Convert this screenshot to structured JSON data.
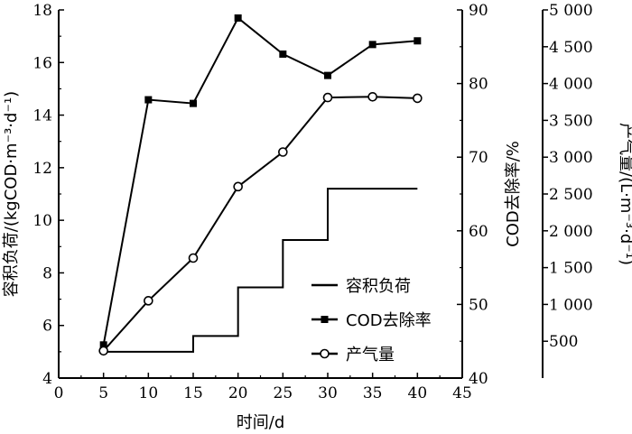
{
  "chart_data": {
    "type": "line",
    "x_axis": {
      "label": "时间/d",
      "range": [
        0,
        45
      ],
      "ticks": [
        0,
        5,
        10,
        15,
        20,
        25,
        30,
        35,
        40,
        45
      ]
    },
    "left_axis": {
      "label": "容积负荷/(kgCOD·m⁻³·d⁻¹)",
      "range": [
        4,
        18
      ],
      "ticks": [
        4,
        6,
        8,
        10,
        12,
        14,
        16,
        18
      ]
    },
    "right_axis_1": {
      "label": "COD去除率/%",
      "range": [
        40,
        90
      ],
      "ticks": [
        40,
        50,
        60,
        70,
        80,
        90
      ]
    },
    "right_axis_2": {
      "label": "产气量/(L·m⁻³·d⁻¹)",
      "range": [
        0,
        5000
      ],
      "ticks": [
        500,
        1000,
        1500,
        2000,
        2500,
        3000,
        3500,
        4000,
        4500,
        5000
      ],
      "tick_labels": [
        "500",
        "1 000",
        "1 500",
        "2 000",
        "2 500",
        "3 000",
        "3 500",
        "4 000",
        "4 500",
        "5 000"
      ]
    },
    "series": [
      {
        "name": "容积负荷",
        "axis": "left",
        "style": "step",
        "marker": "none",
        "points": [
          [
            5,
            5.0
          ],
          [
            15,
            5.0
          ],
          [
            15,
            5.6
          ],
          [
            20,
            5.6
          ],
          [
            20,
            7.45
          ],
          [
            25,
            7.45
          ],
          [
            25,
            9.25
          ],
          [
            30,
            9.25
          ],
          [
            30,
            11.2
          ],
          [
            40,
            11.2
          ]
        ]
      },
      {
        "name": "COD去除率",
        "axis": "right_1",
        "marker": "square",
        "points": [
          [
            5,
            44.5
          ],
          [
            10,
            77.8
          ],
          [
            15,
            77.3
          ],
          [
            20,
            88.9
          ],
          [
            25,
            84.0
          ],
          [
            30,
            81.1
          ],
          [
            35,
            85.3
          ],
          [
            40,
            85.8
          ]
        ]
      },
      {
        "name": "产气量",
        "axis": "right_2",
        "marker": "circle-open",
        "points": [
          [
            5,
            370
          ],
          [
            10,
            1050
          ],
          [
            15,
            1630
          ],
          [
            20,
            2600
          ],
          [
            25,
            3070
          ],
          [
            30,
            3810
          ],
          [
            35,
            3820
          ],
          [
            40,
            3800
          ]
        ]
      }
    ],
    "legend": {
      "position": "bottom-center",
      "entries": [
        "容积负荷",
        "COD去除率",
        "产气量"
      ]
    },
    "grid": false
  }
}
